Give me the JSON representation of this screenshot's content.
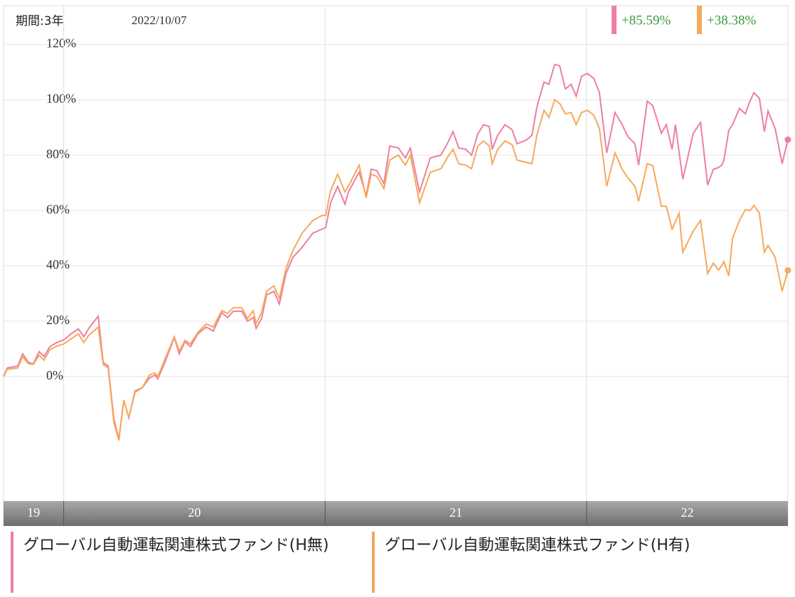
{
  "chart_data": {
    "type": "line",
    "period": "期間:3年",
    "date": "2022/10/07",
    "xlim": [
      2019.77,
      2022.77
    ],
    "xticks": [
      2020,
      2021,
      2022
    ],
    "categories": [
      "19",
      "20",
      "21",
      "22"
    ],
    "ylim": [
      -45,
      134
    ],
    "yticks": [
      {
        "value": 0,
        "label": "0%"
      },
      {
        "value": 20,
        "label": "20%"
      },
      {
        "value": 40,
        "label": "40%"
      },
      {
        "value": 60,
        "label": "60%"
      },
      {
        "value": 80,
        "label": "80%"
      },
      {
        "value": 100,
        "label": "100%"
      },
      {
        "value": 120,
        "label": "120%"
      }
    ],
    "grid": true,
    "x": [
      2019.77,
      2019.784,
      2019.824,
      2019.843,
      2019.865,
      2019.884,
      2019.906,
      2019.925,
      2019.947,
      2019.974,
      2020.001,
      2020.028,
      2020.056,
      2020.077,
      2020.096,
      2020.132,
      2020.151,
      2020.17,
      2020.192,
      2020.211,
      2020.23,
      2020.249,
      2020.273,
      2020.3,
      2020.328,
      2020.349,
      2020.36,
      2020.387,
      2020.423,
      2020.442,
      2020.464,
      2020.485,
      2020.513,
      2020.545,
      2020.572,
      2020.605,
      2020.627,
      2020.649,
      2020.681,
      2020.703,
      2020.725,
      2020.736,
      2020.757,
      2020.776,
      2020.804,
      2020.825,
      2020.85,
      2020.877,
      2020.912,
      2020.953,
      2020.989,
      2021.002,
      2021.021,
      2021.048,
      2021.076,
      2021.089,
      2021.13,
      2021.157,
      2021.176,
      2021.198,
      2021.225,
      2021.247,
      2021.28,
      2021.307,
      2021.326,
      2021.361,
      2021.402,
      2021.443,
      2021.47,
      2021.489,
      2021.511,
      2021.538,
      2021.56,
      2021.584,
      2021.606,
      2021.628,
      2021.639,
      2021.66,
      2021.688,
      2021.715,
      2021.734,
      2021.769,
      2021.791,
      2021.81,
      2021.837,
      2021.856,
      2021.878,
      2021.897,
      2021.919,
      2021.941,
      2021.96,
      2021.981,
      2022.003,
      2022.028,
      2022.049,
      2022.077,
      2022.109,
      2022.136,
      2022.158,
      2022.185,
      2022.199,
      2022.232,
      2022.253,
      2022.286,
      2022.305,
      2022.327,
      2022.34,
      2022.354,
      2022.368,
      2022.408,
      2022.436,
      2022.463,
      2022.485,
      2022.504,
      2022.517,
      2022.525,
      2022.544,
      2022.558,
      2022.585,
      2022.607,
      2022.626,
      2022.64,
      2022.661,
      2022.68,
      2022.694,
      2022.721,
      2022.748,
      2022.77
    ],
    "series": [
      {
        "name": "グローバル自動運転関連株式ファンド(H無)",
        "color": "#ee7fa0",
        "last_label": "+85.59%",
        "values": [
          0,
          3.1,
          3.8,
          8.2,
          5.1,
          4.6,
          9.0,
          7.2,
          10.8,
          12.3,
          13.3,
          15.4,
          17.2,
          14.4,
          17.4,
          21.8,
          5.1,
          3.8,
          -15.4,
          -22.6,
          -8.5,
          -14.9,
          -5.6,
          -4.1,
          -0.5,
          0.5,
          -0.8,
          5.1,
          14.1,
          8.2,
          12.6,
          10.8,
          15.4,
          17.9,
          16.4,
          23.1,
          21.3,
          23.6,
          23.6,
          20.0,
          21.3,
          17.4,
          21.0,
          29.5,
          30.8,
          26.2,
          37.2,
          43.1,
          46.7,
          51.8,
          53.3,
          53.8,
          62.8,
          68.7,
          62.3,
          66.7,
          73.8,
          65.4,
          74.9,
          74.4,
          69.7,
          83.3,
          82.6,
          79.0,
          82.6,
          66.7,
          79.0,
          80.0,
          84.6,
          88.5,
          82.6,
          82.1,
          80.0,
          87.7,
          91.0,
          90.3,
          82.1,
          87.2,
          91.0,
          89.2,
          84.1,
          85.4,
          87.2,
          97.4,
          106.4,
          105.6,
          112.8,
          112.3,
          103.9,
          105.6,
          101.3,
          108.5,
          109.5,
          107.7,
          102.6,
          80.8,
          95.4,
          91.0,
          86.7,
          84.1,
          76.4,
          99.5,
          97.9,
          87.9,
          91.0,
          82.1,
          91.0,
          81.0,
          71.3,
          87.9,
          91.8,
          69.2,
          74.9,
          75.5,
          76.4,
          78.0,
          89.0,
          91.0,
          96.9,
          94.9,
          99.7,
          102.6,
          100.5,
          88.5,
          95.9,
          89.7,
          76.9,
          85.59
        ]
      },
      {
        "name": "グローバル自動運転関連株式ファンド(H有)",
        "color": "#f5a95c",
        "last_label": "+38.38%",
        "values": [
          0,
          2.6,
          3.1,
          7.2,
          4.6,
          4.4,
          7.7,
          5.9,
          9.7,
          11.0,
          11.8,
          13.6,
          15.4,
          12.3,
          14.9,
          17.9,
          4.4,
          3.1,
          -16.7,
          -23.1,
          -8.5,
          -14.9,
          -5.1,
          -4.1,
          0.5,
          1.3,
          0,
          6.2,
          14.4,
          9.2,
          13.1,
          11.8,
          15.9,
          19.0,
          17.9,
          23.8,
          22.8,
          24.9,
          24.9,
          21.0,
          23.8,
          19.2,
          23.1,
          30.8,
          32.8,
          28.2,
          39.0,
          45.6,
          51.8,
          56.4,
          58.2,
          58.2,
          67.2,
          73.1,
          66.7,
          68.7,
          76.4,
          64.6,
          73.1,
          72.3,
          67.9,
          78.2,
          80.0,
          76.4,
          80.0,
          62.8,
          73.8,
          75.1,
          79.5,
          82.1,
          76.9,
          76.4,
          75.1,
          83.3,
          85.1,
          83.3,
          76.9,
          82.1,
          85.1,
          83.8,
          78.2,
          77.4,
          76.9,
          87.2,
          96.2,
          93.6,
          100.0,
          98.7,
          94.9,
          95.4,
          91.0,
          95.4,
          96.2,
          94.4,
          89.7,
          68.7,
          80.8,
          74.9,
          71.8,
          68.7,
          63.3,
          76.9,
          76.2,
          61.5,
          61.5,
          53.3,
          56.0,
          59.0,
          44.9,
          52.6,
          56.4,
          37.2,
          41.0,
          38.5,
          40.0,
          41.5,
          36.4,
          50.0,
          56.4,
          60.3,
          60.0,
          61.8,
          59.0,
          44.9,
          47.4,
          43.1,
          30.8,
          38.38
        ]
      }
    ]
  }
}
